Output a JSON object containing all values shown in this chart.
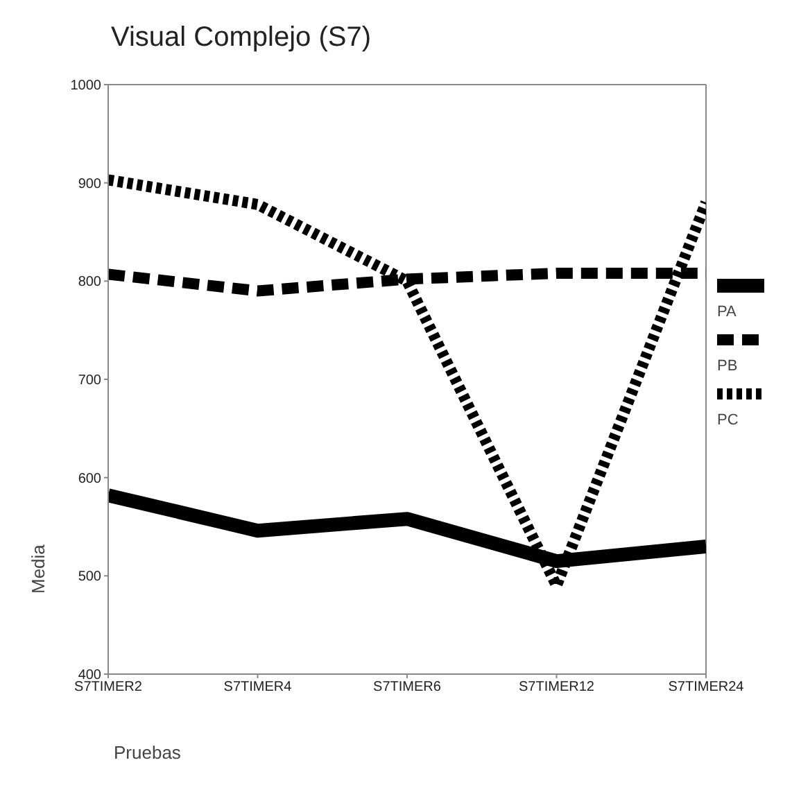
{
  "chart_data": {
    "type": "line",
    "title": "Visual Complejo (S7)",
    "xlabel": "Pruebas",
    "ylabel": "Media",
    "categories": [
      "S7TIMER2",
      "S7TIMER4",
      "S7TIMER6",
      "S7TIMER12",
      "S7TIMER24"
    ],
    "series": [
      {
        "name": "PA",
        "color": "#000000",
        "line_style": "solid",
        "values": [
          582,
          546,
          558,
          515,
          530
        ]
      },
      {
        "name": "PB",
        "color": "#000000",
        "line_style": "dashed",
        "values": [
          807,
          790,
          802,
          808,
          808
        ]
      },
      {
        "name": "PC",
        "color": "#000000",
        "line_style": "dotted",
        "values": [
          903,
          878,
          800,
          490,
          880
        ]
      }
    ],
    "ylim": [
      400,
      1000
    ],
    "yticks": [
      400,
      500,
      600,
      700,
      800,
      900,
      1000
    ],
    "grid": false,
    "legend": "right",
    "marker": "none"
  }
}
